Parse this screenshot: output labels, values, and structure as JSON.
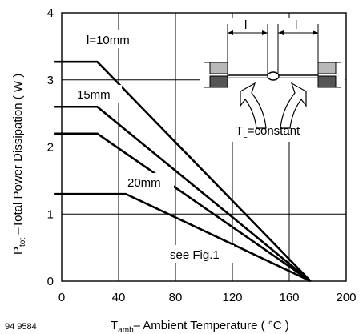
{
  "figure_number": "94 9584",
  "chart_data": {
    "type": "line",
    "xlabel_main": "T",
    "xlabel_sub": "amb",
    "xlabel_rest": "– Ambient Temperature ( °C )",
    "ylabel_main": "P",
    "ylabel_sub": "tot",
    "ylabel_rest": " –Total Power Dissipation ( W )",
    "xlim": [
      0,
      200
    ],
    "ylim": [
      0,
      4
    ],
    "xticks": [
      0,
      40,
      80,
      120,
      160,
      200
    ],
    "yticks": [
      0,
      1,
      2,
      3,
      4
    ],
    "grid": true,
    "series": [
      {
        "name": "l=10mm",
        "x": [
          -5,
          25,
          175
        ],
        "y": [
          3.27,
          3.27,
          0
        ]
      },
      {
        "name": "15mm",
        "x": [
          -5,
          25,
          175
        ],
        "y": [
          2.6,
          2.6,
          0
        ]
      },
      {
        "name": "",
        "x": [
          -5,
          25,
          175
        ],
        "y": [
          2.2,
          2.2,
          0
        ]
      },
      {
        "name": "20mm",
        "x": [
          -5,
          45,
          175
        ],
        "y": [
          1.3,
          1.3,
          0
        ]
      }
    ],
    "annotations": {
      "see_fig": "see Fig.1",
      "inset_l_left": "l",
      "inset_l_right": "l",
      "inset_tl_main": "T",
      "inset_tl_sub": "L",
      "inset_tl_rest": "=constant"
    }
  }
}
